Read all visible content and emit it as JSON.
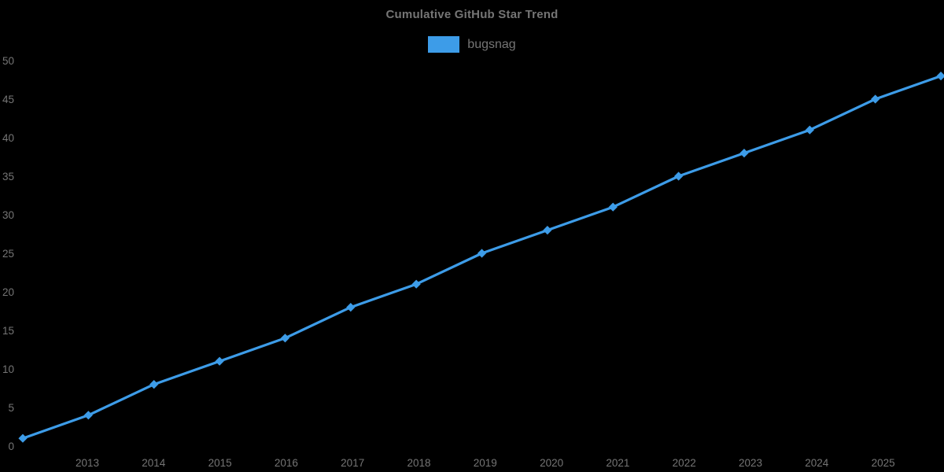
{
  "title": "Cumulative GitHub Star Trend",
  "legend": {
    "label": "bugsnag"
  },
  "colors": {
    "background": "#000000",
    "line": "#3d9ce8",
    "marker": "#3d9ce8",
    "title_text": "#757575",
    "tick_text": "#757575",
    "legend_text": "#757575"
  },
  "chart_data": {
    "type": "line",
    "title": "Cumulative GitHub Star Trend",
    "xlabel": "",
    "ylabel": "",
    "series": [
      {
        "name": "bugsnag",
        "x": [
          2012,
          2013,
          2014,
          2015,
          2016,
          2017,
          2018,
          2019,
          2020,
          2021,
          2022,
          2023,
          2024,
          2025,
          2026
        ],
        "values": [
          1,
          4,
          8,
          11,
          14,
          18,
          21,
          25,
          28,
          31,
          35,
          38,
          41,
          45,
          48
        ]
      }
    ],
    "x_ticks": [
      2013,
      2014,
      2015,
      2016,
      2017,
      2018,
      2019,
      2020,
      2021,
      2022,
      2023,
      2024,
      2025
    ],
    "y_ticks": [
      0,
      5,
      10,
      15,
      20,
      25,
      30,
      35,
      40,
      45,
      50
    ],
    "xlim": [
      2012,
      2026
    ],
    "ylim": [
      0,
      50
    ],
    "grid": false,
    "axis_lines": false,
    "legend_position": "top-center",
    "marker": "diamond"
  }
}
